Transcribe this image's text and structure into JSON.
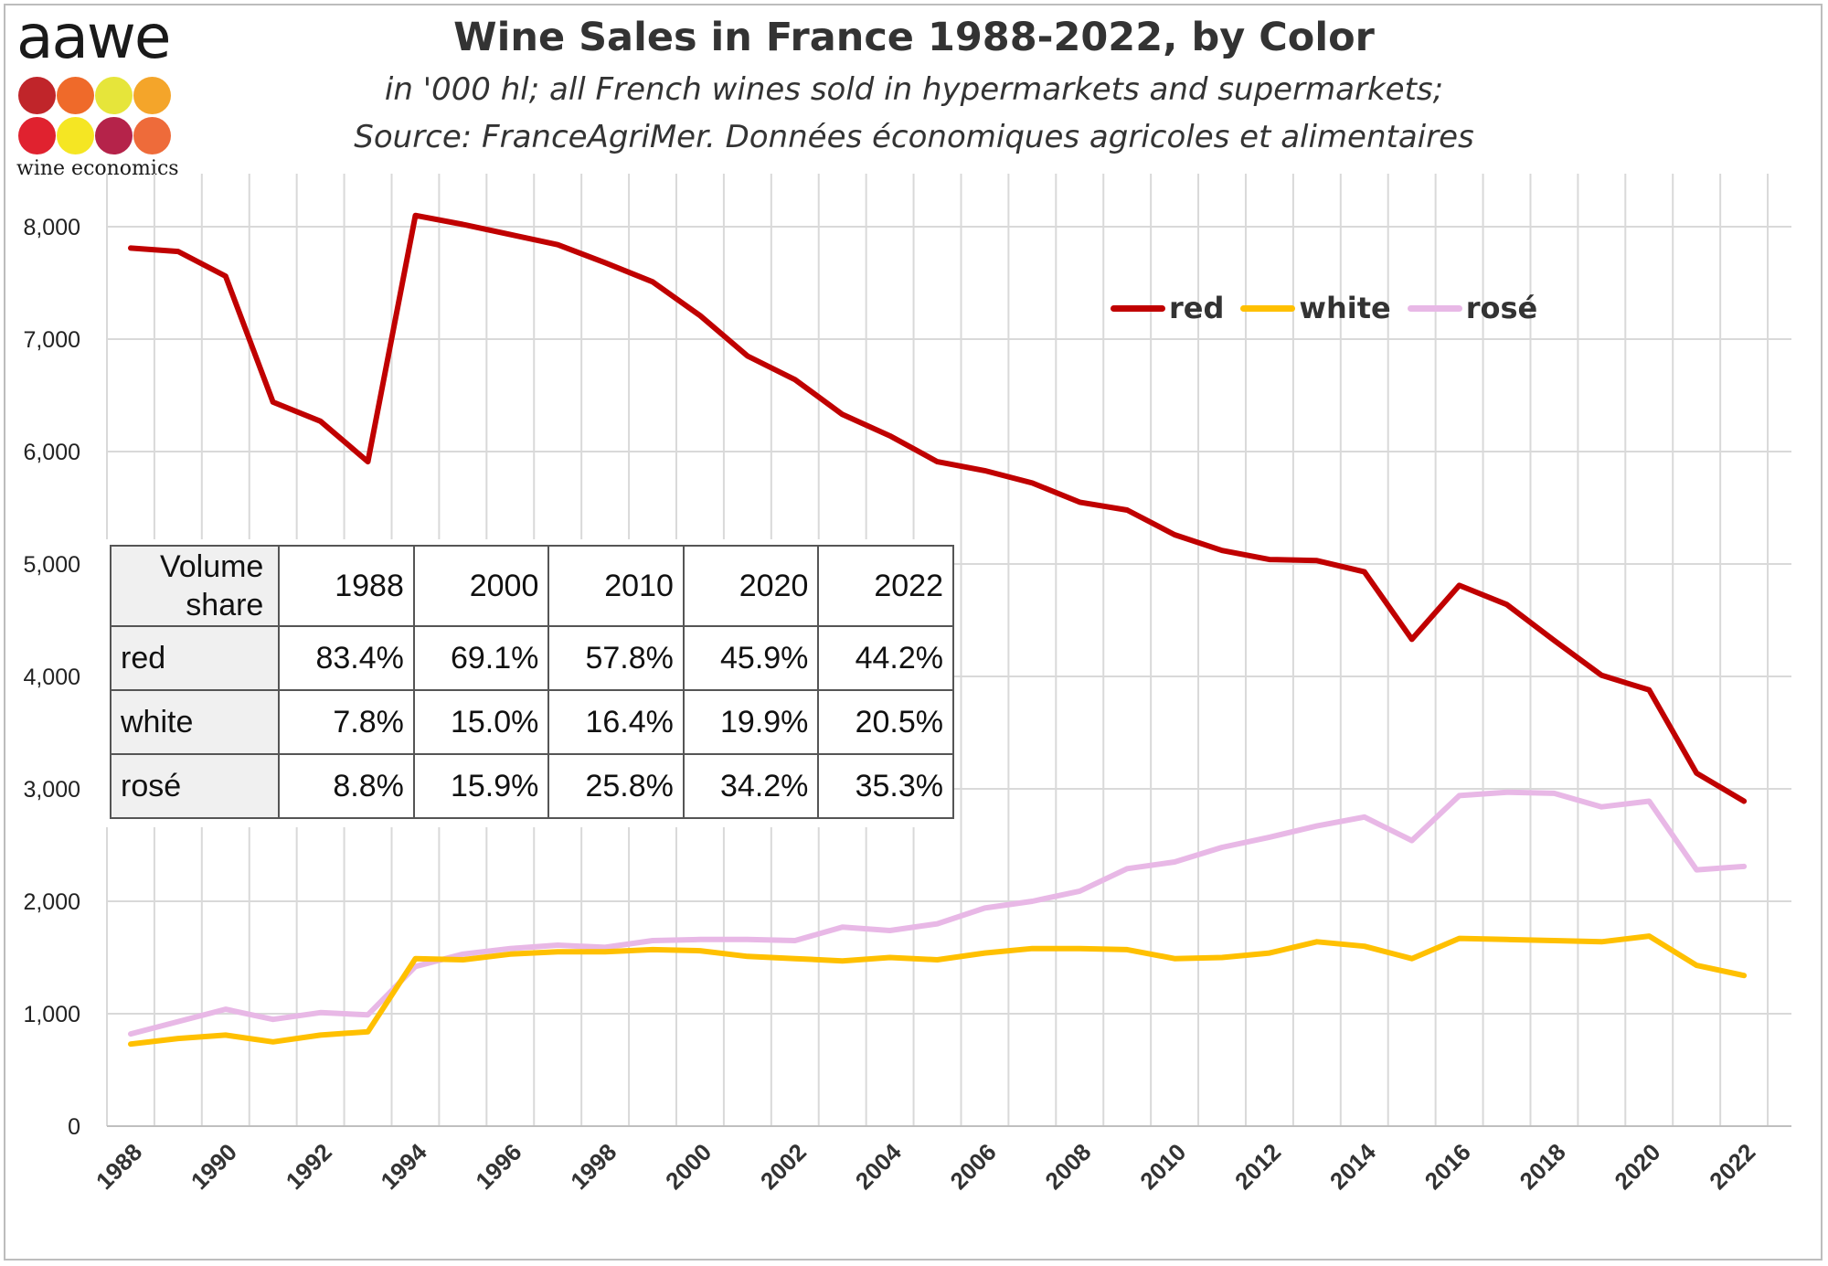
{
  "logo": {
    "wordmark": "aawe",
    "tagline": "wine economics",
    "dot_colors": [
      "#c0252a",
      "#ef6a2a",
      "#e6e53a",
      "#f4a52a",
      "#e0222f",
      "#f5e623",
      "#b5234a",
      "#ee6b3a"
    ]
  },
  "header": {
    "title": "Wine Sales in France 1988-2022, by Color",
    "subtitle_line1": "in '000 hl; all French wines sold in hypermarkets and supermarkets;",
    "subtitle_line2": "Source: FranceAgriMer. Données économiques agricoles et alimentaires"
  },
  "legend": {
    "items": [
      {
        "label": "red",
        "color": "#c00000"
      },
      {
        "label": "white",
        "color": "#ffc000"
      },
      {
        "label": "rosé",
        "color": "#e8b8e6"
      }
    ]
  },
  "share_table": {
    "corner_line1": "Volume",
    "corner_line2": "share",
    "years": [
      "1988",
      "2000",
      "2010",
      "2020",
      "2022"
    ],
    "rows": [
      {
        "label": "red",
        "values": [
          "83.4%",
          "69.1%",
          "57.8%",
          "45.9%",
          "44.2%"
        ]
      },
      {
        "label": "white",
        "values": [
          "7.8%",
          "15.0%",
          "16.4%",
          "19.9%",
          "20.5%"
        ]
      },
      {
        "label": "rosé",
        "values": [
          "8.8%",
          "15.9%",
          "25.8%",
          "34.2%",
          "35.3%"
        ]
      }
    ]
  },
  "chart_data": {
    "type": "line",
    "title": "Wine Sales in France 1988-2022, by Color",
    "xlabel": "",
    "ylabel": "",
    "ylim": [
      0,
      8000
    ],
    "yticks": [
      0,
      1000,
      2000,
      3000,
      4000,
      5000,
      6000,
      7000,
      8000
    ],
    "ytick_labels": [
      "0",
      "1,000",
      "2,000",
      "3,000",
      "4,000",
      "5,000",
      "6,000",
      "7,000",
      "8,000"
    ],
    "xtick_labels": [
      "1988",
      "1990",
      "1992",
      "1994",
      "1996",
      "1998",
      "2000",
      "2002",
      "2004",
      "2006",
      "2008",
      "2010",
      "2012",
      "2014",
      "2016",
      "2018",
      "2020",
      "2022"
    ],
    "grid": true,
    "legend_position": "top-right",
    "x": [
      1988,
      1989,
      1990,
      1991,
      1992,
      1993,
      1994,
      1995,
      1996,
      1997,
      1998,
      1999,
      2000,
      2001,
      2002,
      2003,
      2004,
      2005,
      2006,
      2007,
      2008,
      2009,
      2010,
      2011,
      2012,
      2013,
      2014,
      2015,
      2016,
      2017,
      2018,
      2019,
      2020,
      2021,
      2022
    ],
    "series": [
      {
        "name": "red",
        "color": "#c00000",
        "values": [
          7810,
          7780,
          7560,
          6440,
          6270,
          5910,
          8100,
          8020,
          7930,
          7840,
          7680,
          7510,
          7210,
          6850,
          6640,
          6330,
          6140,
          5910,
          5830,
          5720,
          5550,
          5480,
          5260,
          5120,
          5040,
          5030,
          4930,
          4330,
          4810,
          4640,
          4320,
          4010,
          3880,
          3140,
          2890
        ]
      },
      {
        "name": "white",
        "color": "#ffc000",
        "values": [
          730,
          780,
          810,
          750,
          810,
          840,
          1490,
          1480,
          1530,
          1550,
          1550,
          1570,
          1560,
          1510,
          1490,
          1470,
          1500,
          1480,
          1540,
          1580,
          1580,
          1570,
          1490,
          1500,
          1540,
          1640,
          1600,
          1490,
          1670,
          1660,
          1650,
          1640,
          1690,
          1430,
          1340
        ]
      },
      {
        "name": "rosé",
        "color": "#e8b8e6",
        "values": [
          820,
          930,
          1040,
          950,
          1010,
          990,
          1420,
          1530,
          1580,
          1610,
          1590,
          1650,
          1660,
          1660,
          1650,
          1770,
          1740,
          1800,
          1940,
          2000,
          2090,
          2290,
          2350,
          2480,
          2570,
          2670,
          2750,
          2540,
          2940,
          2970,
          2960,
          2840,
          2890,
          2280,
          2310
        ]
      }
    ]
  }
}
